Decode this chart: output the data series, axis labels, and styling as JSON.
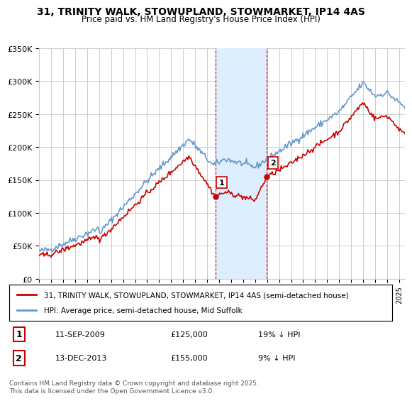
{
  "title": "31, TRINITY WALK, STOWUPLAND, STOWMARKET, IP14 4AS",
  "subtitle": "Price paid vs. HM Land Registry's House Price Index (HPI)",
  "ylabel": "",
  "xlabel": "",
  "ylim": [
    0,
    350000
  ],
  "yticks": [
    0,
    50000,
    100000,
    150000,
    200000,
    250000,
    300000,
    350000
  ],
  "ytick_labels": [
    "£0",
    "£50K",
    "£100K",
    "£150K",
    "£200K",
    "£250K",
    "£300K",
    "£350K"
  ],
  "sale1_date": 2009.69,
  "sale1_price": 125000,
  "sale1_label": "1",
  "sale1_text": "11-SEP-2009    £125,000    19% ↓ HPI",
  "sale2_date": 2013.95,
  "sale2_price": 155000,
  "sale2_label": "2",
  "sale2_text": "13-DEC-2013    £155,000    9% ↓ HPI",
  "legend_line1": "31, TRINITY WALK, STOWUPLAND, STOWMARKET, IP14 4AS (semi-detached house)",
  "legend_line2": "HPI: Average price, semi-detached house, Mid Suffolk",
  "footer": "Contains HM Land Registry data © Crown copyright and database right 2025.\nThis data is licensed under the Open Government Licence v3.0.",
  "red_color": "#cc0000",
  "blue_color": "#6699cc",
  "shade_color": "#ddeeff",
  "grid_color": "#cccccc",
  "background_color": "#ffffff"
}
